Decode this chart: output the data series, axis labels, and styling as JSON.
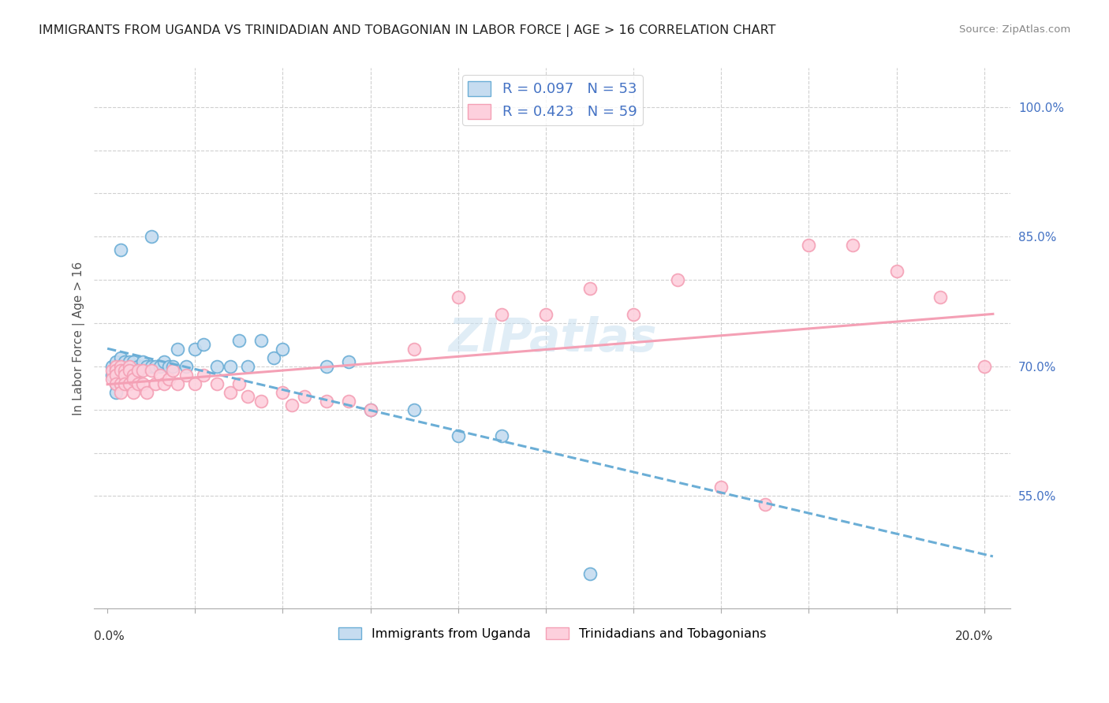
{
  "title": "IMMIGRANTS FROM UGANDA VS TRINIDADIAN AND TOBAGONIAN IN LABOR FORCE | AGE > 16 CORRELATION CHART",
  "source": "Source: ZipAtlas.com",
  "ylabel": "In Labor Force | Age > 16",
  "y_ticks": [
    0.55,
    0.6,
    0.65,
    0.7,
    0.75,
    0.8,
    0.85,
    0.9,
    0.95,
    1.0
  ],
  "y_tick_labels": [
    "55.0%",
    "",
    "",
    "70.0%",
    "",
    "",
    "85.0%",
    "",
    "",
    "100.0%"
  ],
  "x_ticks": [
    0.0,
    0.02,
    0.04,
    0.06,
    0.08,
    0.1,
    0.12,
    0.14,
    0.16,
    0.18,
    0.2
  ],
  "color_uganda": "#6baed6",
  "color_tt": "#f4a0b5",
  "color_uganda_fill": "#c6dcf0",
  "color_tt_fill": "#fdd0dd",
  "watermark": "ZIPatlas",
  "background": "#ffffff",
  "uganda_x": [
    0.001,
    0.001,
    0.002,
    0.002,
    0.002,
    0.002,
    0.002,
    0.003,
    0.003,
    0.003,
    0.003,
    0.004,
    0.004,
    0.004,
    0.004,
    0.005,
    0.005,
    0.005,
    0.005,
    0.006,
    0.006,
    0.006,
    0.007,
    0.007,
    0.008,
    0.008,
    0.009,
    0.01,
    0.011,
    0.012,
    0.013,
    0.014,
    0.015,
    0.016,
    0.018,
    0.02,
    0.022,
    0.025,
    0.028,
    0.03,
    0.032,
    0.035,
    0.038,
    0.04,
    0.05,
    0.055,
    0.06,
    0.07,
    0.08,
    0.09,
    0.01,
    0.003,
    0.11
  ],
  "uganda_y": [
    0.7,
    0.69,
    0.695,
    0.7,
    0.705,
    0.68,
    0.67,
    0.7,
    0.695,
    0.71,
    0.69,
    0.7,
    0.7,
    0.695,
    0.705,
    0.7,
    0.695,
    0.705,
    0.69,
    0.7,
    0.705,
    0.695,
    0.7,
    0.695,
    0.7,
    0.705,
    0.7,
    0.7,
    0.7,
    0.7,
    0.705,
    0.7,
    0.7,
    0.72,
    0.7,
    0.72,
    0.725,
    0.7,
    0.7,
    0.73,
    0.7,
    0.73,
    0.71,
    0.72,
    0.7,
    0.705,
    0.65,
    0.65,
    0.62,
    0.62,
    0.85,
    0.835,
    0.46
  ],
  "tt_x": [
    0.001,
    0.001,
    0.002,
    0.002,
    0.002,
    0.002,
    0.003,
    0.003,
    0.003,
    0.003,
    0.004,
    0.004,
    0.004,
    0.005,
    0.005,
    0.005,
    0.006,
    0.006,
    0.006,
    0.007,
    0.007,
    0.008,
    0.008,
    0.009,
    0.01,
    0.011,
    0.012,
    0.013,
    0.014,
    0.015,
    0.016,
    0.018,
    0.02,
    0.022,
    0.025,
    0.028,
    0.03,
    0.032,
    0.035,
    0.04,
    0.042,
    0.045,
    0.05,
    0.055,
    0.06,
    0.07,
    0.08,
    0.09,
    0.1,
    0.11,
    0.12,
    0.13,
    0.14,
    0.15,
    0.16,
    0.17,
    0.18,
    0.19,
    0.2
  ],
  "tt_y": [
    0.695,
    0.685,
    0.7,
    0.695,
    0.69,
    0.68,
    0.7,
    0.695,
    0.68,
    0.67,
    0.695,
    0.69,
    0.68,
    0.7,
    0.695,
    0.68,
    0.69,
    0.685,
    0.67,
    0.695,
    0.68,
    0.695,
    0.68,
    0.67,
    0.695,
    0.68,
    0.69,
    0.68,
    0.685,
    0.695,
    0.68,
    0.69,
    0.68,
    0.69,
    0.68,
    0.67,
    0.68,
    0.665,
    0.66,
    0.67,
    0.655,
    0.665,
    0.66,
    0.66,
    0.65,
    0.72,
    0.78,
    0.76,
    0.76,
    0.79,
    0.76,
    0.8,
    0.56,
    0.54,
    0.84,
    0.84,
    0.81,
    0.78,
    0.7
  ]
}
